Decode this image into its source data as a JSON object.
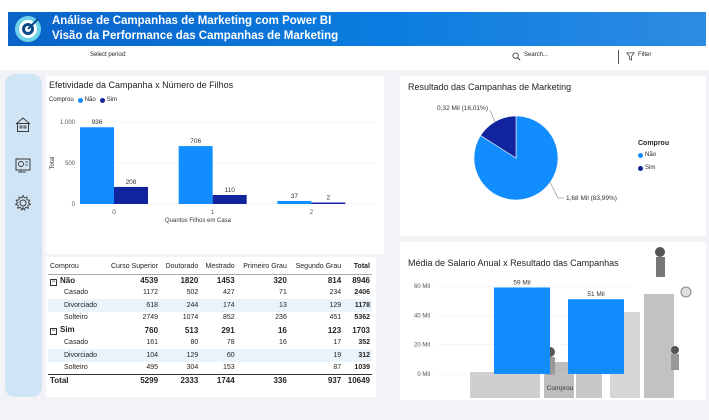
{
  "header": {
    "title": "Análise de Campanhas de Marketing com Power BI",
    "subtitle": "Visão da Performance das Campanhas de Marketing"
  },
  "filterbar": {
    "period_label": "Select period:",
    "search_placeholder": "Search...",
    "filter_label": "Filter"
  },
  "sidebar": {
    "icons": [
      "home-icon",
      "dashboard-icon",
      "settings-gear-icon"
    ]
  },
  "colors": {
    "nao": "#118dff",
    "sim": "#12239e",
    "header": "#0b7de0"
  },
  "chart_bar": {
    "title": "Efetividade da Campanha x Número de Filhos",
    "legend_title": "Comprou",
    "legend": [
      "Não",
      "Sim"
    ],
    "chart_data": {
      "type": "bar",
      "categories": [
        "0",
        "1",
        "2"
      ],
      "series": [
        {
          "name": "Não",
          "values": [
            936,
            706,
            37
          ]
        },
        {
          "name": "Sim",
          "values": [
            208,
            110,
            2
          ]
        }
      ],
      "xlabel": "Quantos Filhos em Casa",
      "ylabel": "Total",
      "yticks": [
        "1.000",
        "500",
        "0"
      ],
      "ylim": [
        0,
        1000
      ]
    }
  },
  "chart_pie": {
    "title": "Resultado das Campanhas de Marketing",
    "legend_title": "Comprou",
    "legend": [
      "Não",
      "Sim"
    ],
    "chart_data": {
      "type": "pie",
      "labels": [
        "Não",
        "Sim"
      ],
      "values": [
        83.99,
        16.01
      ],
      "data_labels": [
        "1,68 Mil (83,99%)",
        "0,32 Mil (16,01%)"
      ]
    }
  },
  "matrix": {
    "headers": [
      "Comprou",
      "Curso Superior",
      "Doutorado",
      "Mestrado",
      "Primeiro Grau",
      "Segundo Grau",
      "Total"
    ],
    "rows": [
      {
        "type": "grp",
        "cells": [
          "Não",
          "4539",
          "1820",
          "1453",
          "320",
          "814",
          "8946"
        ]
      },
      {
        "type": "sub",
        "cells": [
          "Casado",
          "1172",
          "502",
          "427",
          "71",
          "234",
          "2406"
        ]
      },
      {
        "type": "sub",
        "cells": [
          "Divorciado",
          "618",
          "244",
          "174",
          "13",
          "129",
          "1178"
        ]
      },
      {
        "type": "sub",
        "cells": [
          "Solteiro",
          "2749",
          "1074",
          "852",
          "236",
          "451",
          "5362"
        ]
      },
      {
        "type": "grp",
        "cells": [
          "Sim",
          "760",
          "513",
          "291",
          "16",
          "123",
          "1703"
        ]
      },
      {
        "type": "sub",
        "cells": [
          "Casado",
          "161",
          "80",
          "78",
          "16",
          "17",
          "352"
        ]
      },
      {
        "type": "sub",
        "cells": [
          "Divorciado",
          "104",
          "129",
          "60",
          "",
          "19",
          "312"
        ]
      },
      {
        "type": "sub",
        "cells": [
          "Solteiro",
          "495",
          "304",
          "153",
          "",
          "87",
          "1039"
        ]
      },
      {
        "type": "tot",
        "cells": [
          "Total",
          "5299",
          "2333",
          "1744",
          "336",
          "937",
          "10649"
        ]
      }
    ]
  },
  "chart_salary": {
    "title": "Média de Salario Anual x Resultado das Campanhas",
    "chart_data": {
      "type": "bar",
      "categories": [
        "Não",
        "Sim"
      ],
      "values": [
        59,
        51
      ],
      "data_labels": [
        "59 Mil",
        "51 Mil"
      ],
      "xlabel": "Comprou",
      "yticks": [
        "60 Mil",
        "40 Mil",
        "20 Mil",
        "0 Mil"
      ],
      "ylim": [
        0,
        60
      ]
    }
  }
}
